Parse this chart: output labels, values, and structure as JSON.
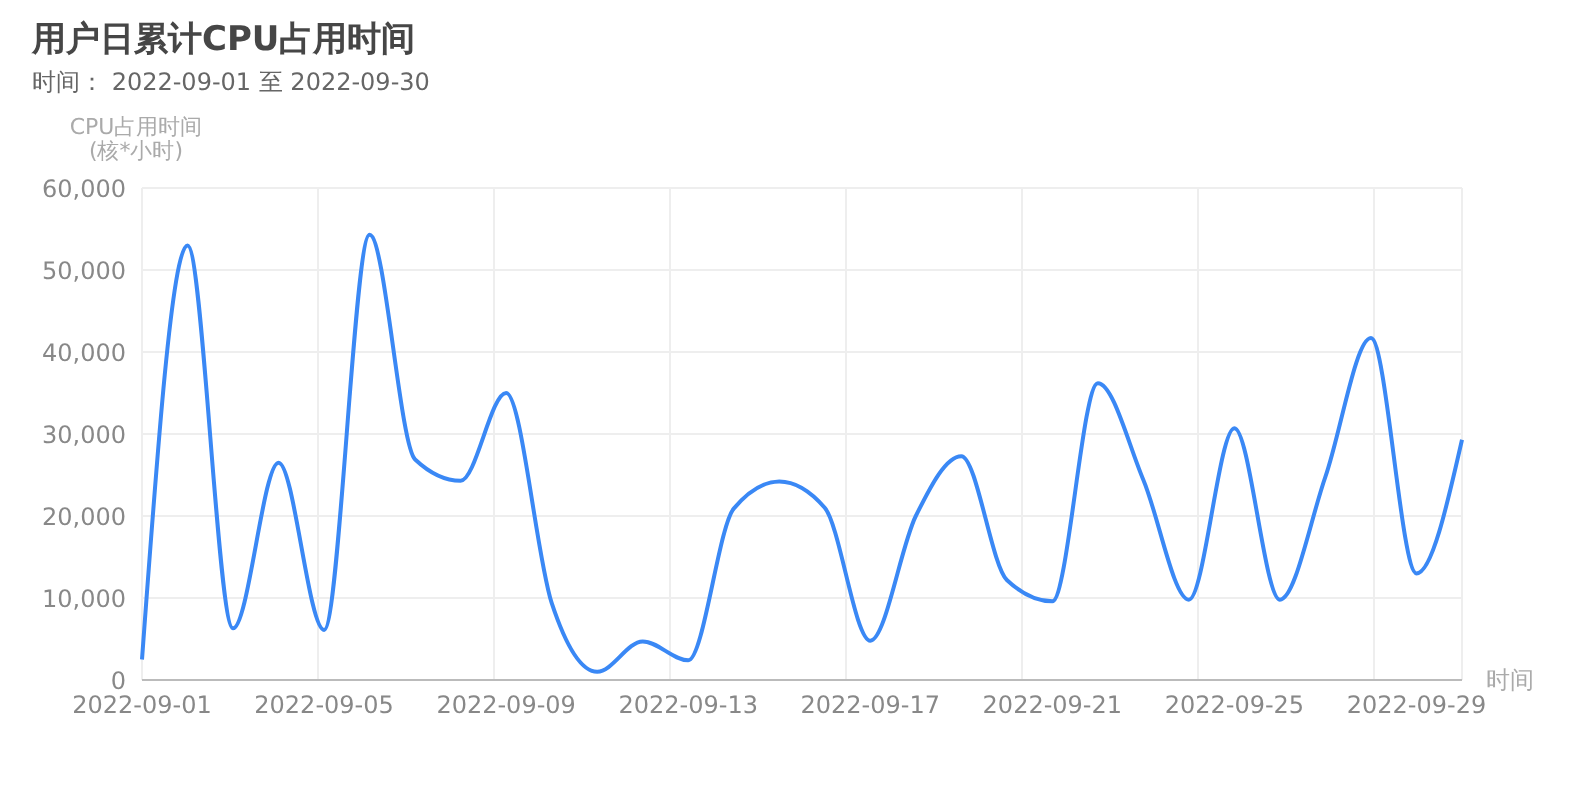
{
  "chart_data": {
    "type": "line",
    "title": "用户日累计CPU占用时间",
    "subtitle": "时间：  2022-09-01 至 2022-09-30",
    "ylabel": "CPU占用时间\n(核*小时)",
    "xlabel": "时间",
    "categories": [
      "2022-09-01",
      null,
      null,
      null,
      "2022-09-05",
      null,
      null,
      null,
      "2022-09-09",
      null,
      null,
      null,
      "2022-09-13",
      null,
      null,
      null,
      "2022-09-17",
      null,
      null,
      null,
      "2022-09-21",
      null,
      null,
      null,
      "2022-09-25",
      null,
      null,
      null,
      "2022-09-29",
      null
    ],
    "series": [
      {
        "color": "#3a88f5",
        "values": [
          2500,
          53000,
          6300,
          26500,
          6100,
          54300,
          26900,
          24300,
          35000,
          9400,
          1000,
          4700,
          2400,
          20900,
          24200,
          21000,
          4800,
          20000,
          27300,
          12200,
          9600,
          36200,
          24400,
          9800,
          30700,
          9800,
          24800,
          41700,
          13000,
          29300
        ]
      }
    ],
    "ylim": [
      0,
      60000
    ],
    "yticks": [
      0,
      {
        "value": 10000,
        "label": "10,000"
      },
      {
        "value": 20000,
        "label": "20,000"
      },
      {
        "value": 30000,
        "label": "30,000"
      },
      {
        "value": 40000,
        "label": "40,000"
      },
      {
        "value": 50000,
        "label": "50,000"
      },
      {
        "value": 60000,
        "label": "60,000"
      }
    ],
    "grid": true,
    "line_style": "solid"
  }
}
